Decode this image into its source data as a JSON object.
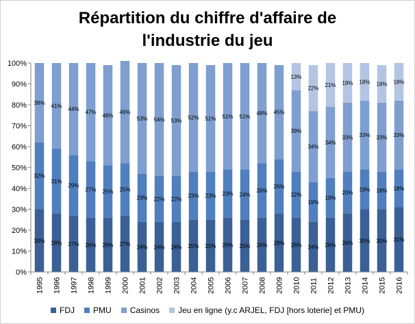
{
  "chart_data": {
    "type": "bar",
    "stacked": true,
    "title": "Répartition du chiffre d'affaire de l'industrie du jeu",
    "title_lines": [
      "Répartition du chiffre d'affaire de",
      "l'industrie du jeu"
    ],
    "categories": [
      "1995",
      "1996",
      "1997",
      "1998",
      "1999",
      "2000",
      "2001",
      "2002",
      "2003",
      "2004",
      "2005",
      "2006",
      "2007",
      "2008",
      "2009",
      "2010",
      "2011",
      "2012",
      "2013",
      "2014",
      "2015",
      "2016"
    ],
    "y_ticks": [
      "0%",
      "10%",
      "20%",
      "30%",
      "40%",
      "50%",
      "60%",
      "70%",
      "80%",
      "90%",
      "100%"
    ],
    "ylim": [
      0,
      100
    ],
    "grid": false,
    "legend_position": "bottom",
    "series": [
      {
        "name": "FDJ",
        "color": "#3a6096",
        "values": [
          30,
          28,
          27,
          26,
          26,
          27,
          24,
          24,
          24,
          25,
          25,
          26,
          25,
          26,
          28,
          26,
          24,
          26,
          28,
          30,
          30,
          31
        ],
        "labels": [
          "30%",
          "28%",
          "27%",
          "26%",
          "26%",
          "27%",
          "24%",
          "24%",
          "24%",
          "25%",
          "25%",
          "26%",
          "25%",
          "26%",
          "28%",
          "26%",
          "24%",
          "26%",
          "28%",
          "30%",
          "30%",
          "31%"
        ]
      },
      {
        "name": "PMU",
        "color": "#4f7fbe",
        "values": [
          32,
          31,
          29,
          27,
          25,
          25,
          23,
          22,
          22,
          23,
          23,
          23,
          24,
          26,
          26,
          22,
          19,
          19,
          20,
          19,
          18,
          18
        ],
        "labels": [
          "32%",
          "31%",
          "29%",
          "27%",
          "25%",
          "25%",
          "23%",
          "22%",
          "22%",
          "23%",
          "23%",
          "23%",
          "24%",
          "26%",
          "26%",
          "22%",
          "19%",
          "19%",
          "20%",
          "19%",
          "18%",
          "18%"
        ]
      },
      {
        "name": "Casinos",
        "color": "#7e9fcf",
        "values": [
          38,
          41,
          44,
          47,
          48,
          49,
          53,
          54,
          53,
          52,
          51,
          51,
          51,
          48,
          45,
          39,
          34,
          34,
          33,
          33,
          33,
          33
        ],
        "labels": [
          "38%",
          "41%",
          "44%",
          "47%",
          "48%",
          "49%",
          "53%",
          "54%",
          "53%",
          "52%",
          "51%",
          "51%",
          "51%",
          "48%",
          "45%",
          "39%",
          "34%",
          "34%",
          "33%",
          "33%",
          "33%",
          "33%"
        ]
      },
      {
        "name": "Jeu en ligne (y.c ARJEL, FDJ [hors loterie] et PMU)",
        "color": "#b3c5e3",
        "values": [
          0,
          0,
          0,
          0,
          0,
          0,
          0,
          0,
          0,
          0,
          0,
          0,
          0,
          0,
          0,
          13,
          22,
          21,
          19,
          18,
          18,
          18
        ],
        "labels": [
          "",
          "",
          "",
          "",
          "",
          "",
          "",
          "",
          "",
          "",
          "",
          "",
          "",
          "",
          "",
          "13%",
          "22%",
          "21%",
          "19%",
          "18%",
          "18%",
          "18%"
        ]
      }
    ]
  }
}
